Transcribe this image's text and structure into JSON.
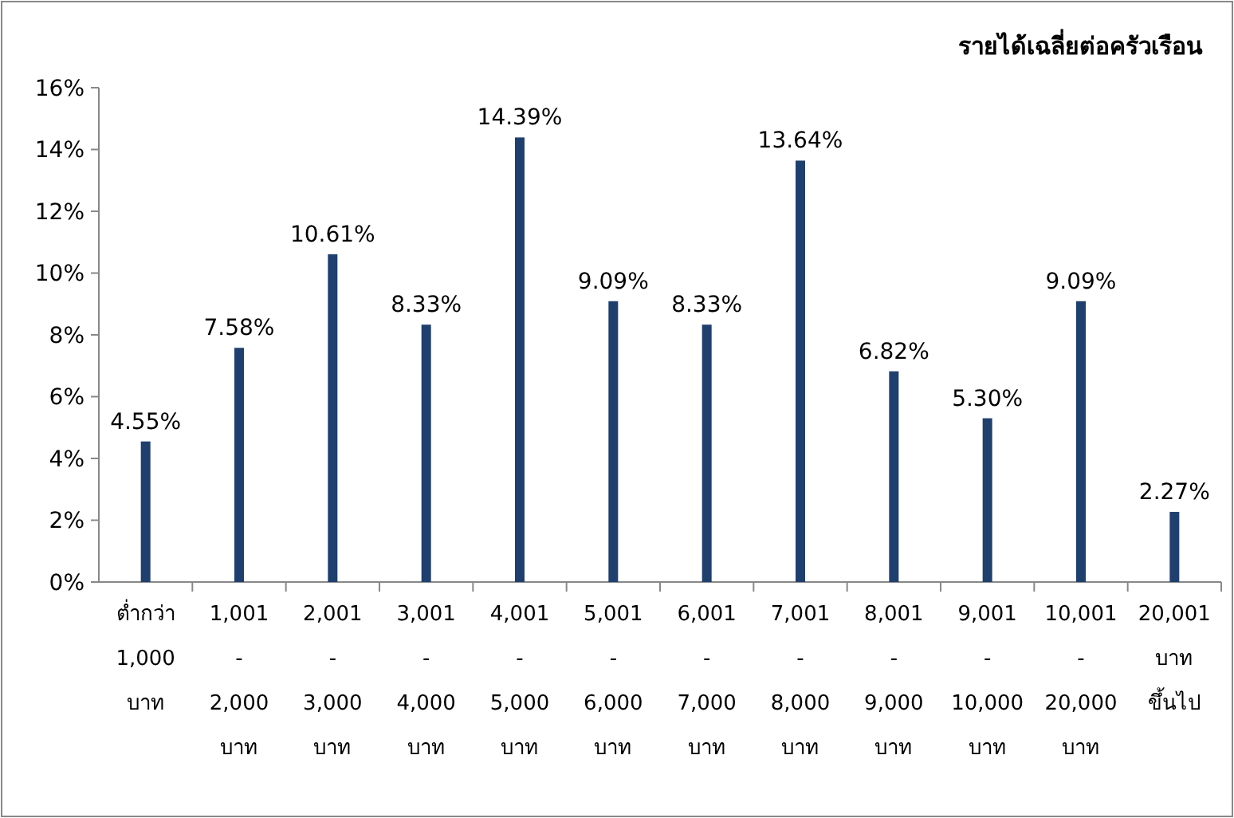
{
  "chart_data": {
    "type": "bar",
    "title": "รายได้เฉลี่ยต่อครัวเรือน",
    "categories": [
      "ต่ำกว่า 1,000 บาท",
      "1,001 - 2,000 บาท",
      "2,001 - 3,000 บาท",
      "3,001 - 4,000 บาท",
      "4,001 - 5,000 บาท",
      "5,001 - 6,000 บาท",
      "6,001 - 7,000 บาท",
      "7,001 - 8,000 บาท",
      "8,001 - 9,000 บาท",
      "9,001 - 10,000 บาท",
      "10,001 - 20,000 บาท",
      "20,001 บาท ขึ้นไป"
    ],
    "values": [
      4.55,
      7.58,
      10.61,
      8.33,
      14.39,
      9.09,
      8.33,
      13.64,
      6.82,
      5.3,
      9.09,
      2.27
    ],
    "value_labels": [
      "4.55%",
      "7.58%",
      "10.61%",
      "8.33%",
      "14.39%",
      "9.09%",
      "8.33%",
      "13.64%",
      "6.82%",
      "5.30%",
      "9.09%",
      "2.27%"
    ],
    "color": "#1f3f6e",
    "ylim": [
      0,
      16
    ],
    "yticks": [
      {
        "value": 0,
        "label": "0%"
      },
      {
        "value": 2,
        "label": "2%"
      },
      {
        "value": 4,
        "label": "4%"
      },
      {
        "value": 6,
        "label": "6%"
      },
      {
        "value": 8,
        "label": "8%"
      },
      {
        "value": 10,
        "label": "10%"
      },
      {
        "value": 12,
        "label": "12%"
      },
      {
        "value": 14,
        "label": "14%"
      },
      {
        "value": 16,
        "label": "16%"
      }
    ],
    "grid": false
  }
}
